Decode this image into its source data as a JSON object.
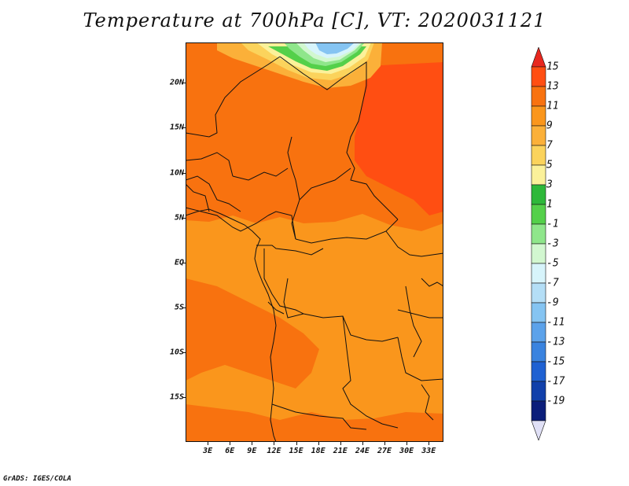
{
  "title": "Temperature at 700hPa [C], VT: 2020031121",
  "credit": "GrADS: IGES/COLA",
  "map": {
    "projection": "lat-lon",
    "lon_range": [
      0,
      35
    ],
    "lat_range": [
      -20,
      24.5
    ],
    "variable": "Temperature at 700hPa",
    "units": "C",
    "lat_labels": [
      "20N",
      "15N",
      "10N",
      "5N",
      "EQ",
      "5S",
      "10S",
      "15S"
    ],
    "lat_values": [
      20,
      15,
      10,
      5,
      0,
      -5,
      -10,
      -15
    ],
    "lon_labels": [
      "3E",
      "6E",
      "9E",
      "12E",
      "15E",
      "18E",
      "21E",
      "24E",
      "27E",
      "30E",
      "33E"
    ],
    "lon_values": [
      3,
      6,
      9,
      12,
      15,
      18,
      21,
      24,
      27,
      30,
      33
    ]
  },
  "colorbar": {
    "labels": [
      "15",
      "13",
      "11",
      "9",
      "7",
      "5",
      "3",
      "1",
      "-1",
      "-3",
      "-5",
      "-7",
      "-9",
      "-11",
      "-13",
      "-15",
      "-17",
      "-19"
    ],
    "colors": [
      "#e8281f",
      "#ff4e12",
      "#f8720f",
      "#fa961c",
      "#fbb039",
      "#fbd35c",
      "#fbf19a",
      "#2eb83a",
      "#54d04a",
      "#8fe68b",
      "#d2f7d0",
      "#d7f4fb",
      "#b4def6",
      "#85c4f2",
      "#5ca2ea",
      "#3a83df",
      "#1f61d2",
      "#1140aa",
      "#0b1e7a",
      "#e0e0f6"
    ]
  }
}
